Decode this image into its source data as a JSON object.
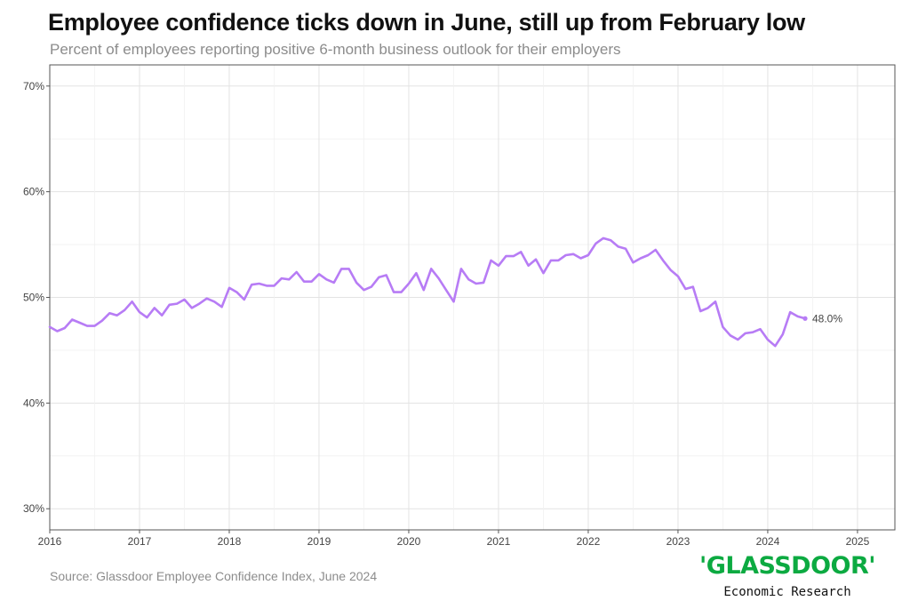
{
  "header": {
    "title": "Employee confidence ticks down in June, still up from February low",
    "subtitle": "Percent of employees reporting positive 6-month business outlook for their employers"
  },
  "footer": {
    "source": "Source: Glassdoor Employee Confidence Index, June 2024",
    "logo_text": "'GLASSDOOR'",
    "logo_subtitle": "Economic Research"
  },
  "colors": {
    "line": "#b77cf5",
    "grid": "#e6e6e6",
    "text": "#444444"
  },
  "chart_data": {
    "type": "line",
    "title": "Employee confidence ticks down in June, still up from February low",
    "subtitle": "Percent of employees reporting positive 6-month business outlook for their employers",
    "xlabel": "",
    "ylabel": "",
    "x_ticks": [
      "2016",
      "2017",
      "2018",
      "2019",
      "2020",
      "2021",
      "2022",
      "2023",
      "2024",
      "2025"
    ],
    "y_ticks": [
      "30%",
      "40%",
      "50%",
      "60%",
      "70%"
    ],
    "xlim": [
      "2016-01",
      "2025-06"
    ],
    "ylim": [
      28,
      72
    ],
    "grid": true,
    "end_label": "48.0%",
    "series": [
      {
        "values": [
          [
            "2016-01",
            47.2
          ],
          [
            "2016-02",
            46.8
          ],
          [
            "2016-03",
            47.1
          ],
          [
            "2016-04",
            47.9
          ],
          [
            "2016-05",
            47.6
          ],
          [
            "2016-06",
            47.3
          ],
          [
            "2016-07",
            47.3
          ],
          [
            "2016-08",
            47.8
          ],
          [
            "2016-09",
            48.5
          ],
          [
            "2016-10",
            48.3
          ],
          [
            "2016-11",
            48.8
          ],
          [
            "2016-12",
            49.6
          ],
          [
            "2017-01",
            48.6
          ],
          [
            "2017-02",
            48.1
          ],
          [
            "2017-03",
            49.0
          ],
          [
            "2017-04",
            48.3
          ],
          [
            "2017-05",
            49.3
          ],
          [
            "2017-06",
            49.4
          ],
          [
            "2017-07",
            49.8
          ],
          [
            "2017-08",
            49.0
          ],
          [
            "2017-09",
            49.4
          ],
          [
            "2017-10",
            49.9
          ],
          [
            "2017-11",
            49.6
          ],
          [
            "2017-12",
            49.1
          ],
          [
            "2018-01",
            50.9
          ],
          [
            "2018-02",
            50.5
          ],
          [
            "2018-03",
            49.8
          ],
          [
            "2018-04",
            51.2
          ],
          [
            "2018-05",
            51.3
          ],
          [
            "2018-06",
            51.1
          ],
          [
            "2018-07",
            51.1
          ],
          [
            "2018-08",
            51.8
          ],
          [
            "2018-09",
            51.7
          ],
          [
            "2018-10",
            52.4
          ],
          [
            "2018-11",
            51.5
          ],
          [
            "2018-12",
            51.5
          ],
          [
            "2019-01",
            52.2
          ],
          [
            "2019-02",
            51.7
          ],
          [
            "2019-03",
            51.4
          ],
          [
            "2019-04",
            52.7
          ],
          [
            "2019-05",
            52.7
          ],
          [
            "2019-06",
            51.4
          ],
          [
            "2019-07",
            50.7
          ],
          [
            "2019-08",
            51.0
          ],
          [
            "2019-09",
            51.9
          ],
          [
            "2019-10",
            52.1
          ],
          [
            "2019-11",
            50.5
          ],
          [
            "2019-12",
            50.5
          ],
          [
            "2020-01",
            51.3
          ],
          [
            "2020-02",
            52.3
          ],
          [
            "2020-03",
            50.7
          ],
          [
            "2020-04",
            52.7
          ],
          [
            "2020-05",
            51.8
          ],
          [
            "2020-06",
            50.7
          ],
          [
            "2020-07",
            49.6
          ],
          [
            "2020-08",
            52.7
          ],
          [
            "2020-09",
            51.7
          ],
          [
            "2020-10",
            51.3
          ],
          [
            "2020-11",
            51.4
          ],
          [
            "2020-12",
            53.5
          ],
          [
            "2021-01",
            53.0
          ],
          [
            "2021-02",
            53.9
          ],
          [
            "2021-03",
            53.9
          ],
          [
            "2021-04",
            54.3
          ],
          [
            "2021-05",
            53.0
          ],
          [
            "2021-06",
            53.6
          ],
          [
            "2021-07",
            52.3
          ],
          [
            "2021-08",
            53.5
          ],
          [
            "2021-09",
            53.5
          ],
          [
            "2021-10",
            54.0
          ],
          [
            "2021-11",
            54.1
          ],
          [
            "2021-12",
            53.7
          ],
          [
            "2022-01",
            54.0
          ],
          [
            "2022-02",
            55.1
          ],
          [
            "2022-03",
            55.6
          ],
          [
            "2022-04",
            55.4
          ],
          [
            "2022-05",
            54.8
          ],
          [
            "2022-06",
            54.6
          ],
          [
            "2022-07",
            53.3
          ],
          [
            "2022-08",
            53.7
          ],
          [
            "2022-09",
            54.0
          ],
          [
            "2022-10",
            54.5
          ],
          [
            "2022-11",
            53.5
          ],
          [
            "2022-12",
            52.6
          ],
          [
            "2023-01",
            52.0
          ],
          [
            "2023-02",
            50.8
          ],
          [
            "2023-03",
            51.0
          ],
          [
            "2023-04",
            48.7
          ],
          [
            "2023-05",
            49.0
          ],
          [
            "2023-06",
            49.6
          ],
          [
            "2023-07",
            47.2
          ],
          [
            "2023-08",
            46.4
          ],
          [
            "2023-09",
            46.0
          ],
          [
            "2023-10",
            46.6
          ],
          [
            "2023-11",
            46.7
          ],
          [
            "2023-12",
            47.0
          ],
          [
            "2024-01",
            46.0
          ],
          [
            "2024-02",
            45.4
          ],
          [
            "2024-03",
            46.5
          ],
          [
            "2024-04",
            48.6
          ],
          [
            "2024-05",
            48.2
          ],
          [
            "2024-06",
            48.0
          ]
        ]
      }
    ]
  }
}
